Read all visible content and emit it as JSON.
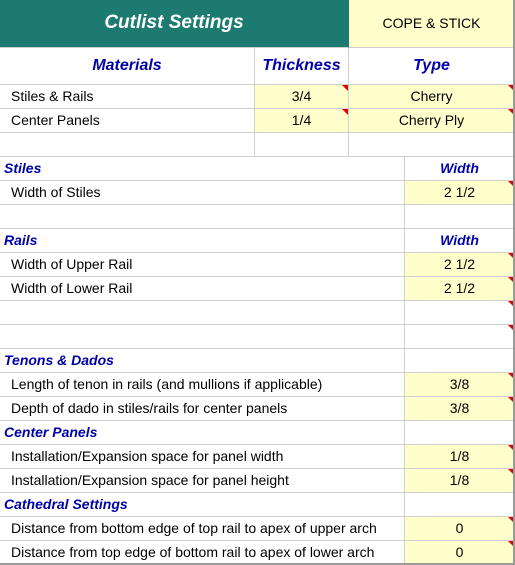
{
  "header": {
    "title": "Cutlist Settings",
    "style_value": "COPE & STICK"
  },
  "materials_table": {
    "col_materials": "Materials",
    "col_thickness": "Thickness",
    "col_type": "Type",
    "rows": [
      {
        "label": "Stiles & Rails",
        "thickness": "3/4",
        "type": "Cherry"
      },
      {
        "label": "Center Panels",
        "thickness": "1/4",
        "type": "Cherry Ply"
      }
    ]
  },
  "stiles": {
    "heading": "Stiles",
    "col_width": "Width",
    "rows": [
      {
        "label": "Width of Stiles",
        "value": "2  1/2"
      }
    ]
  },
  "rails": {
    "heading": "Rails",
    "col_width": "Width",
    "rows": [
      {
        "label": "Width of Upper Rail",
        "value": "2  1/2"
      },
      {
        "label": "Width of Lower Rail",
        "value": "2  1/2"
      }
    ]
  },
  "tenons_dados": {
    "heading": "Tenons & Dados",
    "rows": [
      {
        "label": "Length of tenon in rails (and mullions if applicable)",
        "value": "3/8"
      },
      {
        "label": "Depth of dado in stiles/rails for center panels",
        "value": "3/8"
      }
    ]
  },
  "center_panels": {
    "heading": "Center Panels",
    "rows": [
      {
        "label": "Installation/Expansion space for panel width",
        "value": "1/8"
      },
      {
        "label": "Installation/Expansion space for panel height",
        "value": "1/8"
      }
    ]
  },
  "cathedral": {
    "heading": "Cathedral Settings",
    "rows": [
      {
        "label": "Distance from bottom edge of top rail to apex of upper arch",
        "value": "0"
      },
      {
        "label": "Distance from top edge of bottom rail to apex of lower arch",
        "value": "0"
      }
    ]
  },
  "colors": {
    "title_bg": "#1d7a70",
    "input_bg": "#ffffcc",
    "header_text": "#0000a8",
    "comment_marker": "#e00000"
  }
}
